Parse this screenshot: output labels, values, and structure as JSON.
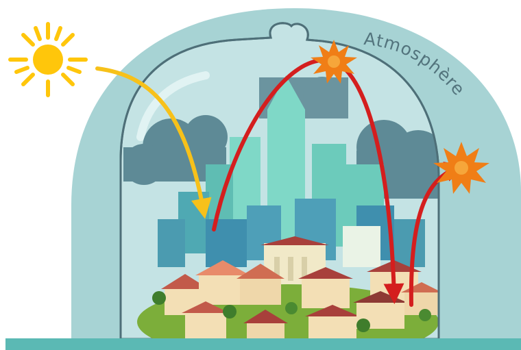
{
  "labels": {
    "atmosphere": "Atmosphère"
  },
  "colors": {
    "atmosphere_outer": "#a7d3d4",
    "bell_glass": "#c4e3e4",
    "bell_outline": "#4e6f78",
    "cloud": "#5e8a96",
    "city_teal": "#5fbdb3",
    "sun": "#ffc60b",
    "solar_arrow": "#f7c11a",
    "heat_arrow": "#d41e1e",
    "star_burst": "#f07e16",
    "ground": "#5bb9b4",
    "label_text": "#53747d"
  },
  "icons": {
    "sun": "sun-icon",
    "star_burst": "burst-icon"
  }
}
